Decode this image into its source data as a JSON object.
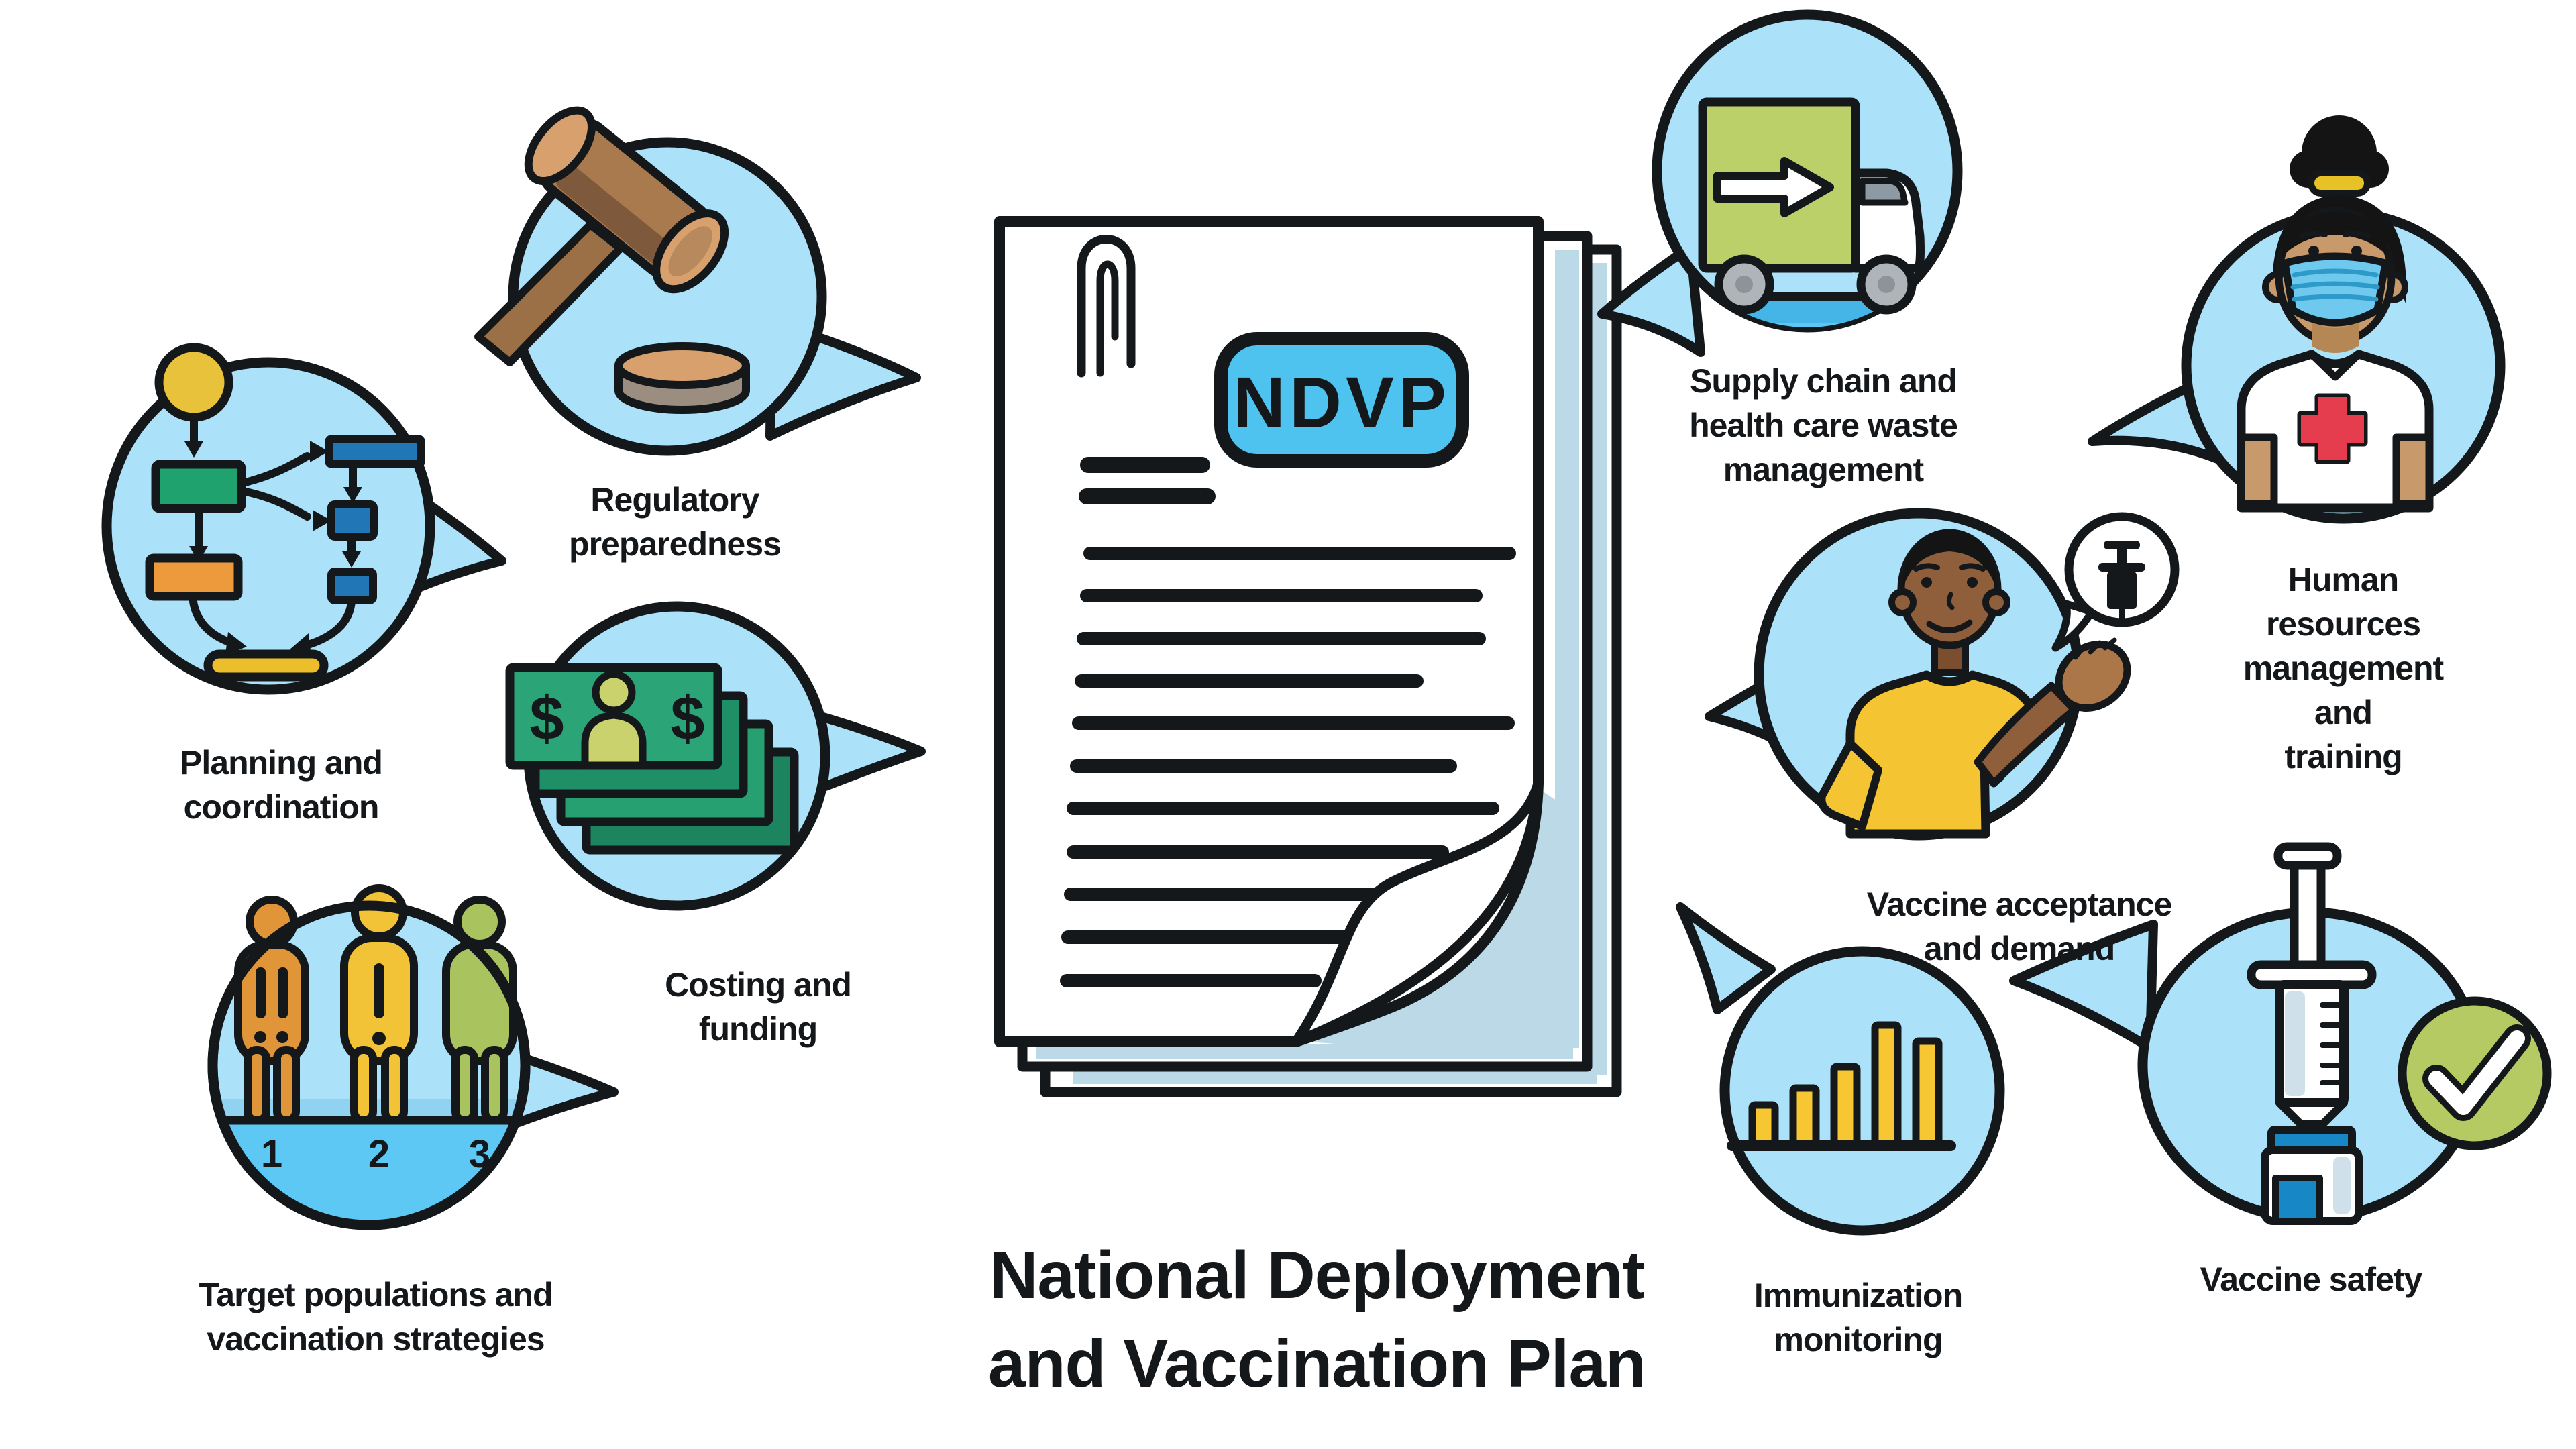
{
  "title": "National Deployment\nand Vaccination Plan",
  "document": {
    "badge_label": "NDVP",
    "page_count": 3,
    "text_line_count": 11
  },
  "bubbles": {
    "planning": {
      "label": "Planning and\ncoordination",
      "icon": "flowchart-icon"
    },
    "regulatory": {
      "label": "Regulatory\npreparedness",
      "icon": "gavel-icon"
    },
    "costing": {
      "label": "Costing and\nfunding",
      "icon": "banknotes-icon",
      "currency_symbol": "$"
    },
    "target_populations": {
      "label": "Target populations and\nvaccination strategies",
      "icon": "priority-groups-icon",
      "group_numbers": [
        "1",
        "2",
        "3"
      ]
    },
    "supply_chain": {
      "label": "Supply chain and\nhealth care waste\nmanagement",
      "icon": "delivery-truck-icon"
    },
    "human_resources": {
      "label": "Human resources\nmanagement and\ntraining",
      "icon": "health-worker-icon"
    },
    "vaccine_acceptance": {
      "label": "Vaccine acceptance\nand demand",
      "icon": "person-speech-syringe-icon"
    },
    "immunization_monitoring": {
      "label": "Immunization\nmonitoring",
      "icon": "bar-chart-icon",
      "bar_heights": [
        61,
        86,
        118,
        180,
        156
      ]
    },
    "vaccine_safety": {
      "label": "Vaccine safety",
      "icon": "syringe-vial-check-icon"
    }
  },
  "colors": {
    "bubble_blue": "#ABE2F9",
    "deep_blue": "#5CC8F3",
    "band_blue": "#8FD3F0",
    "badge_blue": "#4EC3F0",
    "page_shadow_blue": "#BCD9E8",
    "ink": "#15181B",
    "flow_green": "#1FA26D",
    "flow_blue": "#2176B5",
    "flow_orange": "#EC9A3C",
    "flow_yellow": "#E8C23B",
    "money_green": "#2BA477",
    "money_green_dark": "#1F8F68",
    "money_person_lime": "#C9D26C",
    "truck_green": "#BCD06A",
    "fig_orange": "#E09638",
    "fig_yellow": "#F2C237",
    "fig_green": "#A9C45F",
    "gavel_brown": "#A97A4E",
    "gavel_tan": "#D7A06C",
    "handle_brown": "#9C7046",
    "disc_gray": "#9B8D80",
    "skin_light": "#C8996B",
    "skin_dark": "#8F5E3B",
    "palm_brown": "#AC7748",
    "mask_blue": "#6FC9EE",
    "cross_red": "#E53D4E",
    "check_green": "#B5CA62",
    "vial_blue": "#1787C5",
    "syringe_shade": "#CFE0EA",
    "bar_yellow": "#F6C733",
    "wheel_gray": "#AEB4B8",
    "window_gray": "#8D9AA3"
  }
}
